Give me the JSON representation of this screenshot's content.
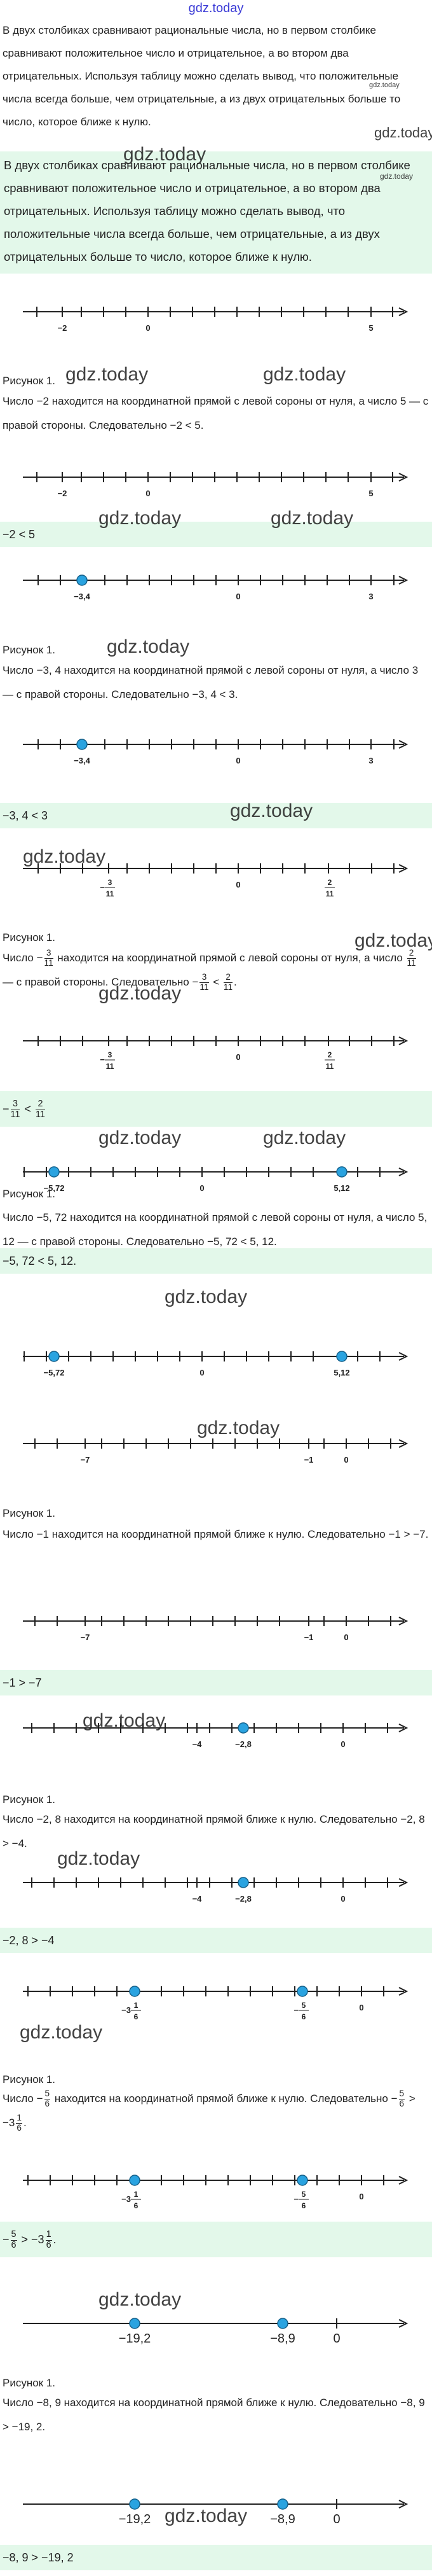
{
  "header": {
    "logo": "gdz.today"
  },
  "watermark": "gdz.today",
  "intro": {
    "paragraph": "В двух столбиках сравнивают рациональные числа, но в первом столбике сравнивают положительное число и отрицательное, а во втором два отрицательных. Используя таблицу можно сделать вывод, что положительные числа всегда больше, чем отрицательные, а из двух отрицательных больше то число, которое ближе к нулю.",
    "highlight": "В двух столбиках сравнивают рациональные числа, но в первом столбике сравнивают положительное число и отрицательное, а во втором два отрицательных. Используя таблицу можно сделать вывод, что положительные числа всегда больше, чем отрицательные, а из двух отрицательных больше то число, которое ближе к нулю."
  },
  "sections": [
    {
      "labels": [
        "−2",
        "0",
        "5"
      ],
      "caption": "Рисунок 1.",
      "text": [
        "Число −2 находится на координатной прямой с левой сороны от нуля, а число 5 — с правой стороны. Следовательно −2 < 5."
      ],
      "result": [
        "−2 < 5"
      ]
    },
    {
      "labels": [
        "−3,4",
        "0",
        "3"
      ],
      "caption": "Рисунок 1.",
      "text": [
        "Число −3, 4 находится на координатной прямой с левой сороны от нуля, а число 3 — с правой стороны. Следовательно −3, 4 < 3."
      ],
      "result": [
        "−3, 4 < 3"
      ]
    },
    {
      "labels": [
        {
          "lead": "−",
          "num": "3",
          "den": "11"
        },
        "0",
        {
          "num": "2",
          "den": "11"
        }
      ],
      "caption": "Рисунок 1.",
      "text": [
        "Число −",
        {
          "num": "3",
          "den": "11"
        },
        " находится на координатной прямой с левой сороны от нуля, а число ",
        {
          "num": "2",
          "den": "11"
        },
        " — с правой стороны. Следовательно −",
        {
          "num": "3",
          "den": "11"
        },
        " < ",
        {
          "num": "2",
          "den": "11"
        },
        "."
      ],
      "result": [
        "−",
        {
          "num": "3",
          "den": "11"
        },
        " < ",
        {
          "num": "2",
          "den": "11"
        }
      ]
    },
    {
      "labels": [
        "−5,72",
        "0",
        "5,12"
      ],
      "caption": "Рисунок 1.",
      "text": [
        "Число −5, 72 находится на координатной прямой с левой сороны от нуля, а число 5, 12 — с правой стороны. Следовательно −5, 72 < 5, 12."
      ],
      "result": [
        "−5, 72 < 5, 12."
      ]
    },
    {
      "labels": [
        "−7",
        "−1",
        "0"
      ],
      "caption": "Рисунок 1.",
      "text": [
        "Число −1 находится на координатной прямой ближе к нулю. Следовательно −1 > −7."
      ],
      "result": [
        "−1 > −7"
      ]
    },
    {
      "labels": [
        "−4",
        "−2,8",
        "0"
      ],
      "caption": "Рисунок 1.",
      "text": [
        "Число −2, 8 находится на координатной прямой ближе к нулю. Следовательно −2, 8 > −4."
      ],
      "result": [
        "−2, 8 > −4"
      ]
    },
    {
      "labels": [
        {
          "lead": "−3",
          "num": "1",
          "den": "6"
        },
        {
          "lead": "−",
          "num": "5",
          "den": "6"
        },
        "0"
      ],
      "caption": "Рисунок 1.",
      "text": [
        "Число −",
        {
          "num": "5",
          "den": "6"
        },
        " находится на координатной прямой ближе к нулю. Следовательно −",
        {
          "num": "5",
          "den": "6"
        },
        " > −3",
        {
          "num": "1",
          "den": "6"
        },
        "."
      ],
      "result": [
        "−",
        {
          "num": "5",
          "den": "6"
        },
        " > −3",
        {
          "num": "1",
          "den": "6"
        },
        "."
      ]
    },
    {
      "labels": [
        "−19,2",
        "−8,9",
        "0"
      ],
      "caption": "Рисунок 1.",
      "text": [
        "Число −8, 9 находится на координатной прямой ближе к нулю. Следовательно −8, 9 > −19, 2."
      ],
      "result": [
        "−8, 9 > −19, 2"
      ]
    }
  ]
}
